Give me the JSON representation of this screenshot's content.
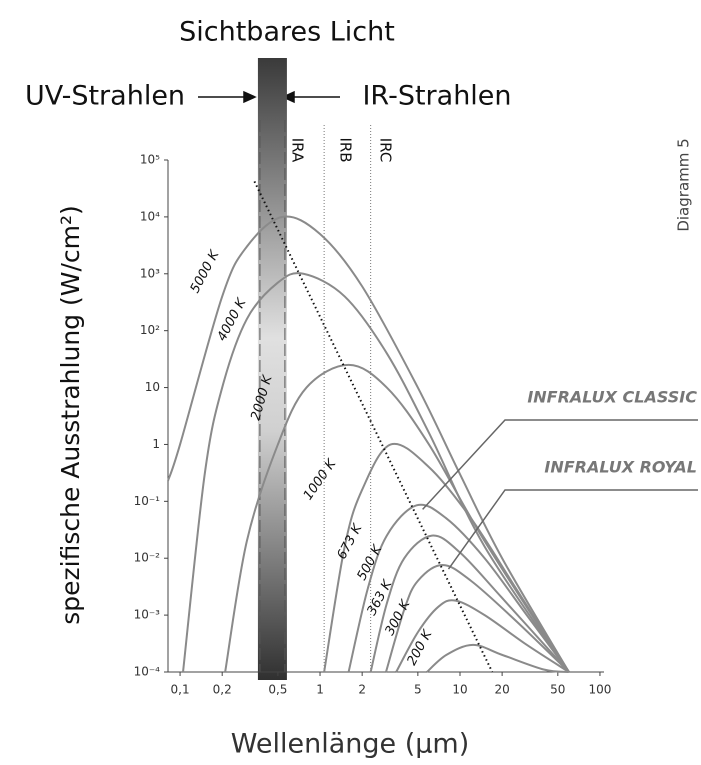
{
  "chart_data": {
    "type": "line",
    "title": "Sichtbares Licht",
    "subtitle": "Diagramm 5",
    "x_label": "Wellenlänge  (µm)",
    "y_label": "spezifische Ausstrahlung (W/cm²)",
    "x_log": true,
    "y_log": true,
    "xlim": [
      0.082,
      126
    ],
    "ylim": [
      0.0001,
      100000
    ],
    "xticks": [
      {
        "value": 0.1,
        "label": "0,1"
      },
      {
        "value": 0.2,
        "label": "0,2"
      },
      {
        "value": 0.5,
        "label": "0,5"
      },
      1,
      2,
      5,
      10,
      20,
      50,
      100
    ],
    "yticks": [
      {
        "value": 100000,
        "label": "10⁵"
      },
      {
        "value": 10000,
        "label": "10⁴"
      },
      {
        "value": 1000,
        "label": "10³"
      },
      {
        "value": 100,
        "label": "10²"
      },
      10,
      1,
      {
        "value": 0.1,
        "label": "10⁻¹"
      },
      {
        "value": 0.01,
        "label": "10⁻²"
      },
      {
        "value": 0.001,
        "label": "10⁻³"
      },
      {
        "value": 0.0001,
        "label": "10⁻⁴"
      }
    ],
    "color": "#8a8a8a",
    "series": [
      {
        "name": "5000 K",
        "x": [
          0.082,
          0.1,
          0.2,
          0.3,
          0.54,
          1,
          2,
          5,
          10,
          20,
          60
        ],
        "values": [
          0.23,
          1,
          400,
          3000,
          10000,
          5000,
          600,
          10,
          0.3,
          0.01,
          0.0001
        ]
      },
      {
        "name": "4000 K",
        "x": [
          0.105,
          0.15,
          0.2,
          0.3,
          0.5,
          0.76,
          1.5,
          3,
          6,
          15,
          60
        ],
        "values": [
          0.0001,
          0.3,
          10,
          160,
          700,
          1000,
          400,
          40,
          1.6,
          0.016,
          0.0001
        ]
      },
      {
        "name": "2000 K",
        "x": [
          0.21,
          0.3,
          0.5,
          0.8,
          1.6,
          3,
          6,
          15,
          60
        ],
        "values": [
          0.0001,
          0.02,
          1,
          10,
          25,
          10,
          1,
          0.02,
          0.0001
        ]
      },
      {
        "name": "1000 K",
        "x": [
          1.07,
          1.5,
          2,
          3.2,
          6,
          12,
          25,
          60
        ],
        "values": [
          0.0001,
          0.016,
          0.16,
          1,
          0.4,
          0.05,
          0.003,
          0.0001
        ]
      },
      {
        "name": "673 K",
        "x": [
          1.6,
          2.2,
          3,
          4.9,
          8,
          15,
          30,
          60
        ],
        "values": [
          0.0001,
          0.003,
          0.025,
          0.085,
          0.05,
          0.01,
          0.001,
          0.0001
        ]
      },
      {
        "name": "500 K",
        "x": [
          2.3,
          3,
          4,
          6.3,
          10,
          20,
          60
        ],
        "values": [
          0.0001,
          0.0016,
          0.01,
          0.025,
          0.0126,
          0.002,
          0.0001
        ]
      },
      {
        "name": "363 K",
        "x": [
          2.96,
          4,
          5,
          7.5,
          12,
          25,
          60
        ],
        "values": [
          0.0001,
          0.00126,
          0.004,
          0.0076,
          0.004,
          0.0008,
          0.0001
        ]
      },
      {
        "name": "300 K",
        "x": [
          3.5,
          5,
          7,
          9.3,
          15,
          30,
          60
        ],
        "values": [
          0.0001,
          0.0005,
          0.0014,
          0.0018,
          0.001,
          0.0003,
          0.0001
        ]
      },
      {
        "name": "200 K",
        "x": [
          5.8,
          8,
          12.4,
          20,
          40,
          60
        ],
        "values": [
          0.0001,
          0.0002,
          0.0003,
          0.0002,
          0.00011,
          0.0001
        ]
      }
    ],
    "wien_line": {
      "x": [
        0.34,
        17
      ],
      "values": [
        42000,
        0.0001
      ]
    },
    "visible_band": {
      "label": "Sichtbares Licht",
      "range": [
        0.36,
        0.58
      ]
    },
    "uv_label": "UV-Strahlen",
    "ir_label": "IR-Strahlen",
    "ir_bands": [
      {
        "label": "IRA",
        "edge": 1.07
      },
      {
        "label": "IRB",
        "edge": 2.3
      },
      {
        "label": "IRC"
      }
    ],
    "annotations": [
      {
        "text": "INFRALUX CLASSIC",
        "series": 4
      },
      {
        "text": "INFRALUX ROYAL",
        "series": 6
      }
    ]
  }
}
